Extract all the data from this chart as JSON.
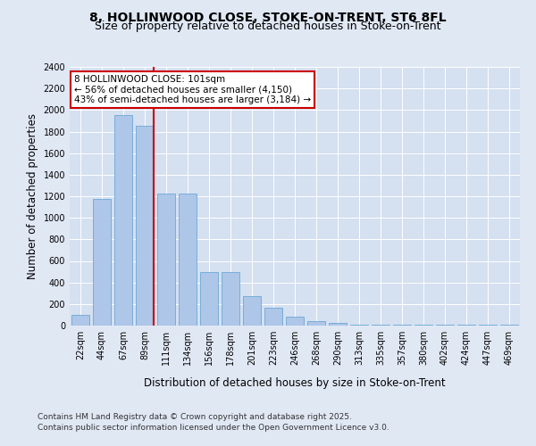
{
  "title_line1": "8, HOLLINWOOD CLOSE, STOKE-ON-TRENT, ST6 8FL",
  "title_line2": "Size of property relative to detached houses in Stoke-on-Trent",
  "xlabel": "Distribution of detached houses by size in Stoke-on-Trent",
  "ylabel": "Number of detached properties",
  "categories": [
    "22sqm",
    "44sqm",
    "67sqm",
    "89sqm",
    "111sqm",
    "134sqm",
    "156sqm",
    "178sqm",
    "201sqm",
    "223sqm",
    "246sqm",
    "268sqm",
    "290sqm",
    "313sqm",
    "335sqm",
    "357sqm",
    "380sqm",
    "402sqm",
    "424sqm",
    "447sqm",
    "469sqm"
  ],
  "values": [
    100,
    1175,
    1950,
    1850,
    1225,
    1225,
    500,
    500,
    270,
    165,
    80,
    40,
    25,
    10,
    5,
    5,
    5,
    5,
    5,
    5,
    5
  ],
  "bar_color": "#aec6e8",
  "bar_edge_color": "#5a9fd4",
  "vline_x_index": 3,
  "vline_color": "#cc0000",
  "annotation_text": "8 HOLLINWOOD CLOSE: 101sqm\n← 56% of detached houses are smaller (4,150)\n43% of semi-detached houses are larger (3,184) →",
  "annotation_box_color": "#ffffff",
  "annotation_box_edge": "#cc0000",
  "ylim": [
    0,
    2400
  ],
  "yticks": [
    0,
    200,
    400,
    600,
    800,
    1000,
    1200,
    1400,
    1600,
    1800,
    2000,
    2200,
    2400
  ],
  "background_color": "#e0e8f4",
  "plot_bg_color": "#d5e0f0",
  "footer_line1": "Contains HM Land Registry data © Crown copyright and database right 2025.",
  "footer_line2": "Contains public sector information licensed under the Open Government Licence v3.0.",
  "title_fontsize": 10,
  "subtitle_fontsize": 9,
  "axis_label_fontsize": 8.5,
  "tick_fontsize": 7,
  "annotation_fontsize": 7.5,
  "footer_fontsize": 6.5
}
